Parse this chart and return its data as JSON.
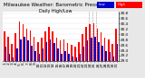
{
  "title": "Milwaukee Weather: Barometric Pressure",
  "subtitle": "Daily High/Low",
  "background_color": "#e8e8e8",
  "plot_bg": "#ffffff",
  "bar_color_high": "#ff0000",
  "bar_color_low": "#0000cc",
  "legend_blue_label": "Low",
  "legend_red_label": "High",
  "ylim": [
    29.0,
    30.85
  ],
  "ytick_values": [
    29.0,
    29.2,
    29.4,
    29.6,
    29.8,
    30.0,
    30.2,
    30.4,
    30.6,
    30.8
  ],
  "ytick_labels": [
    "29.0",
    "29.2",
    "29.4",
    "29.6",
    "29.8",
    "30.0",
    "30.2",
    "30.4",
    "30.6",
    "30.8"
  ],
  "days": [
    "1",
    "2",
    "3",
    "4",
    "5",
    "6",
    "7",
    "8",
    "9",
    "10",
    "11",
    "12",
    "13",
    "14",
    "15",
    "16",
    "17",
    "18",
    "19",
    "20",
    "21",
    "22",
    "23",
    "24",
    "25",
    "26",
    "27",
    "28",
    "29",
    "30",
    "31"
  ],
  "high": [
    30.12,
    29.92,
    29.62,
    30.05,
    30.48,
    30.38,
    30.22,
    30.15,
    29.92,
    29.72,
    29.88,
    30.12,
    30.28,
    30.12,
    29.88,
    29.78,
    29.82,
    29.68,
    29.6,
    29.55,
    29.72,
    30.02,
    30.28,
    30.38,
    30.42,
    30.22,
    30.08,
    29.88,
    29.82,
    29.62,
    30.22
  ],
  "low": [
    29.52,
    29.28,
    29.12,
    29.48,
    29.82,
    29.92,
    29.78,
    29.58,
    29.38,
    29.28,
    29.48,
    29.72,
    29.82,
    29.68,
    29.48,
    29.28,
    29.38,
    29.28,
    29.18,
    29.12,
    29.28,
    29.52,
    29.78,
    29.88,
    29.92,
    29.72,
    29.58,
    29.38,
    29.32,
    29.18,
    29.62
  ],
  "dashed_vlines_x": [
    22.5,
    23.5,
    24.5
  ],
  "title_fontsize": 4.0,
  "tick_label_size": 3.0,
  "xtick_fontsize": 3.2
}
